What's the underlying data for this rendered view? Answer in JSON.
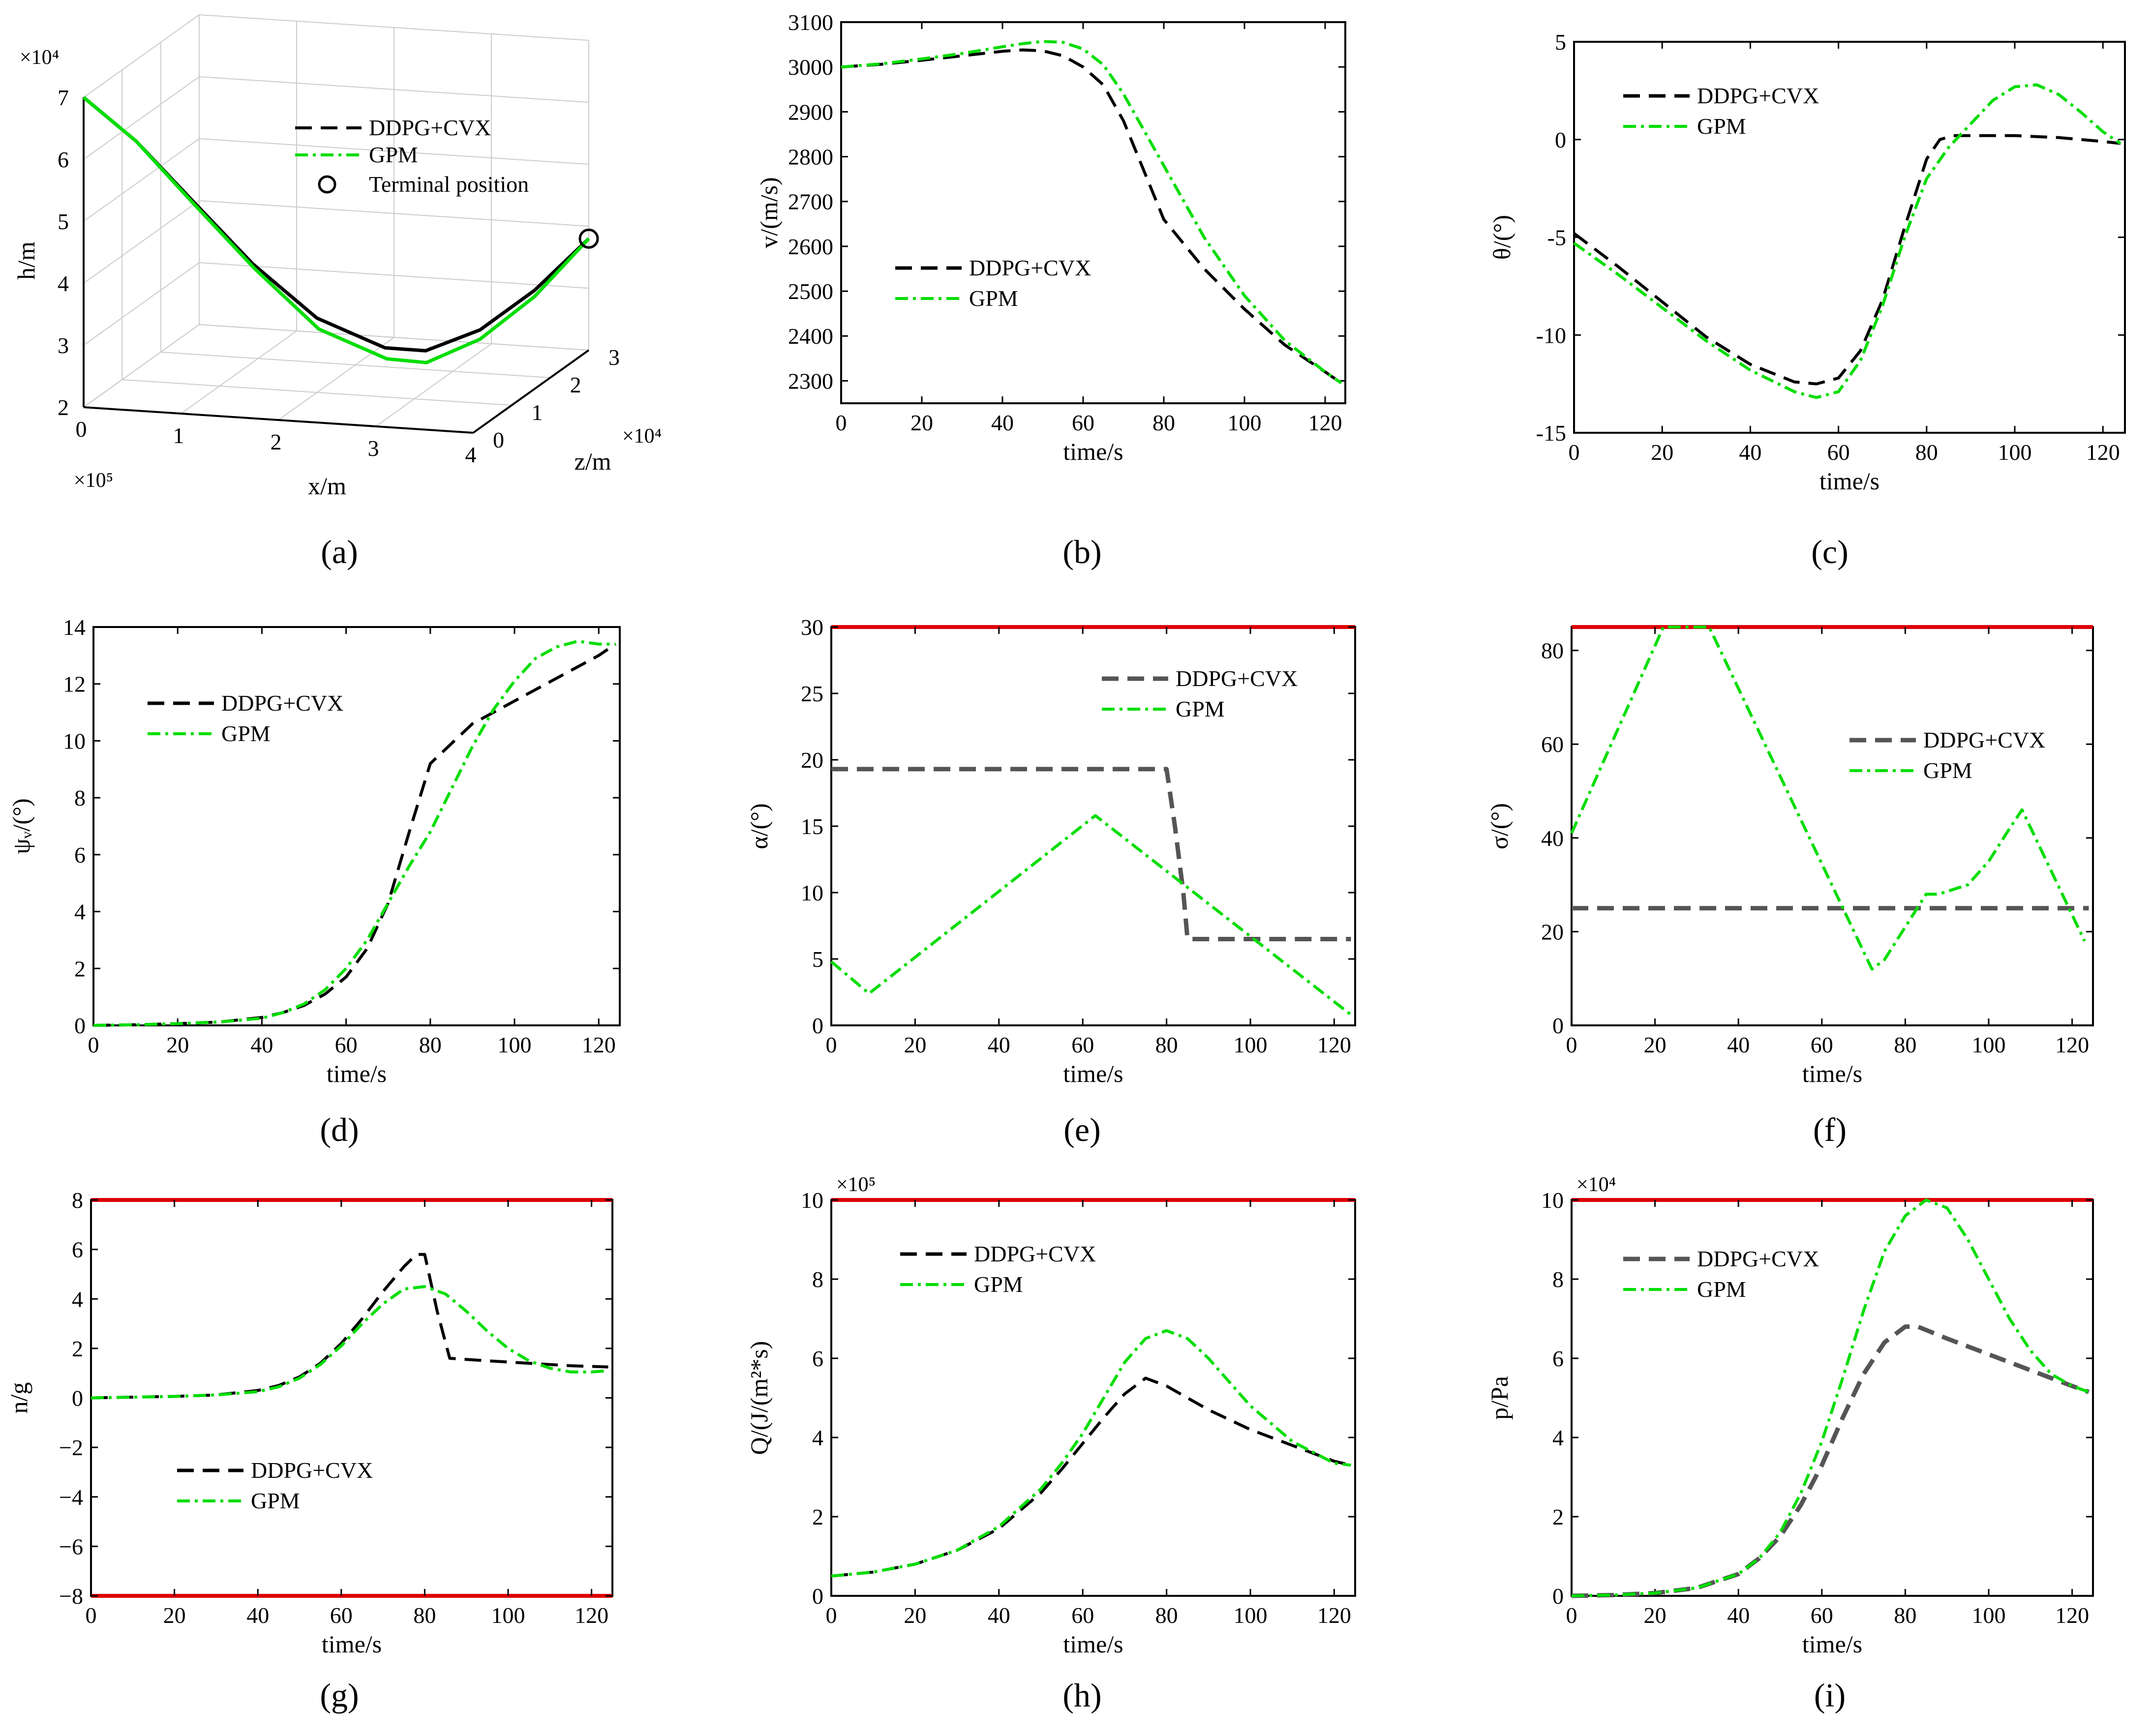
{
  "colors": {
    "ddpg": "#000000",
    "ddpg_gray": "#555555",
    "gpm": "#00dd00",
    "limit": "#dd0000",
    "grid": "#cccccc"
  },
  "chart_data": [
    {
      "id": "a",
      "type": "line3d",
      "caption": "(a)",
      "xlabel": "x/m",
      "ylabel": "h/m",
      "zlabel": "z/m",
      "x_multiplier": "×10⁵",
      "h_multiplier": "×10⁴",
      "z_multiplier": "×10⁴",
      "xticks": [
        "0",
        "1",
        "2",
        "3",
        "4"
      ],
      "hticks": [
        "2",
        "3",
        "4",
        "5",
        "6",
        "7"
      ],
      "zticks": [
        "0",
        "1",
        "2",
        "3"
      ],
      "xlim": [
        0,
        4
      ],
      "hlim": [
        2,
        7
      ],
      "zlim": [
        0,
        3
      ],
      "series": [
        {
          "name": "DDPG+CVX",
          "x": [
            0,
            0.5,
            1.0,
            1.5,
            2.0,
            2.5,
            2.8,
            3.2,
            3.6,
            4.0
          ],
          "h": [
            7.0,
            6.3,
            5.3,
            4.2,
            3.2,
            2.55,
            2.4,
            2.6,
            3.1,
            3.8
          ],
          "z": [
            0,
            0.1,
            0.3,
            0.6,
            1.0,
            1.5,
            1.8,
            2.2,
            2.6,
            3.0
          ]
        },
        {
          "name": "GPM",
          "x": [
            0,
            0.5,
            1.0,
            1.5,
            2.0,
            2.5,
            2.8,
            3.2,
            3.6,
            4.0
          ],
          "h": [
            7.0,
            6.3,
            5.25,
            4.1,
            3.0,
            2.35,
            2.2,
            2.45,
            3.0,
            3.8
          ],
          "z": [
            0,
            0.1,
            0.32,
            0.65,
            1.05,
            1.55,
            1.82,
            2.2,
            2.6,
            3.0
          ]
        }
      ],
      "legend": [
        "DDPG+CVX",
        "GPM",
        "Terminal position"
      ]
    },
    {
      "id": "b",
      "type": "line",
      "caption": "(b)",
      "xlabel": "time/s",
      "ylabel": "v/(m/s)",
      "xlim": [
        0,
        125
      ],
      "ylim": [
        2250,
        3100
      ],
      "xticks": [
        0,
        20,
        40,
        60,
        80,
        100,
        120
      ],
      "yticks": [
        2300,
        2400,
        2500,
        2600,
        2700,
        2800,
        2900,
        3000,
        3100
      ],
      "series": [
        {
          "name": "DDPG+CVX",
          "x": [
            0,
            10,
            20,
            30,
            40,
            45,
            50,
            55,
            60,
            65,
            70,
            75,
            80,
            90,
            100,
            110,
            120,
            124
          ],
          "y": [
            3000,
            3006,
            3015,
            3025,
            3035,
            3038,
            3036,
            3025,
            3000,
            2960,
            2880,
            2770,
            2660,
            2550,
            2460,
            2380,
            2320,
            2295
          ]
        },
        {
          "name": "GPM",
          "x": [
            0,
            10,
            20,
            30,
            40,
            45,
            50,
            55,
            60,
            65,
            70,
            75,
            80,
            90,
            100,
            110,
            120,
            124
          ],
          "y": [
            3000,
            3007,
            3018,
            3030,
            3045,
            3052,
            3057,
            3055,
            3040,
            3005,
            2940,
            2860,
            2780,
            2620,
            2490,
            2390,
            2320,
            2295
          ]
        }
      ],
      "legend_labels": [
        "DDPG+CVX",
        "GPM"
      ]
    },
    {
      "id": "c",
      "type": "line",
      "caption": "(c)",
      "xlabel": "time/s",
      "ylabel": "θ/(°)",
      "xlim": [
        0,
        125
      ],
      "ylim": [
        -15,
        5
      ],
      "xticks": [
        0,
        20,
        40,
        60,
        80,
        100,
        120
      ],
      "yticks": [
        -15,
        -10,
        -5,
        0,
        5
      ],
      "series": [
        {
          "name": "DDPG+CVX",
          "x": [
            0,
            10,
            20,
            30,
            40,
            50,
            55,
            60,
            65,
            70,
            75,
            80,
            83,
            86,
            90,
            100,
            110,
            120,
            124
          ],
          "y": [
            -4.8,
            -6.5,
            -8.3,
            -10.1,
            -11.5,
            -12.4,
            -12.5,
            -12.2,
            -10.8,
            -8.2,
            -4.5,
            -1.0,
            0.0,
            0.2,
            0.2,
            0.2,
            0.1,
            -0.1,
            -0.2
          ]
        },
        {
          "name": "GPM",
          "x": [
            0,
            10,
            20,
            30,
            40,
            50,
            55,
            60,
            65,
            70,
            75,
            80,
            85,
            90,
            95,
            100,
            105,
            110,
            115,
            120,
            124
          ],
          "y": [
            -5.3,
            -6.9,
            -8.6,
            -10.3,
            -11.8,
            -12.9,
            -13.2,
            -12.9,
            -11.3,
            -8.5,
            -5.0,
            -2.0,
            -0.4,
            0.8,
            2.0,
            2.7,
            2.8,
            2.3,
            1.4,
            0.4,
            -0.2
          ]
        }
      ],
      "legend_labels": [
        "DDPG+CVX",
        "GPM"
      ]
    },
    {
      "id": "d",
      "type": "line",
      "caption": "(d)",
      "xlabel": "time/s",
      "ylabel": "ψᵥ/(°)",
      "xlim": [
        0,
        125
      ],
      "ylim": [
        0,
        14
      ],
      "xticks": [
        0,
        20,
        40,
        60,
        80,
        100,
        120
      ],
      "yticks": [
        0,
        2,
        4,
        6,
        8,
        10,
        12,
        14
      ],
      "series": [
        {
          "name": "DDPG+CVX",
          "x": [
            0,
            10,
            20,
            30,
            40,
            45,
            50,
            55,
            60,
            65,
            70,
            75,
            80,
            85,
            90,
            100,
            110,
            120,
            124
          ],
          "y": [
            0,
            0.02,
            0.06,
            0.12,
            0.28,
            0.45,
            0.7,
            1.1,
            1.7,
            2.7,
            4.3,
            6.8,
            9.2,
            9.9,
            10.6,
            11.4,
            12.2,
            13.0,
            13.4
          ]
        },
        {
          "name": "GPM",
          "x": [
            0,
            10,
            20,
            30,
            40,
            45,
            50,
            55,
            60,
            65,
            70,
            75,
            80,
            85,
            90,
            95,
            100,
            105,
            110,
            115,
            120,
            124
          ],
          "y": [
            0,
            0.02,
            0.06,
            0.12,
            0.25,
            0.45,
            0.75,
            1.25,
            2.0,
            3.0,
            4.3,
            5.6,
            6.8,
            8.3,
            9.8,
            11.1,
            12.1,
            12.9,
            13.3,
            13.5,
            13.4,
            13.4
          ]
        }
      ],
      "legend_labels": [
        "DDPG+CVX",
        "GPM"
      ]
    },
    {
      "id": "e",
      "type": "line",
      "caption": "(e)",
      "xlabel": "time/s",
      "ylabel": "α/(°)",
      "xlim": [
        0,
        125
      ],
      "ylim": [
        0,
        30
      ],
      "xticks": [
        0,
        20,
        40,
        60,
        80,
        100,
        120
      ],
      "yticks": [
        0,
        5,
        10,
        15,
        20,
        25,
        30
      ],
      "limit_line": 30,
      "series": [
        {
          "name": "DDPG+CVX",
          "x": [
            0,
            80,
            82,
            84,
            85,
            124
          ],
          "y": [
            19.3,
            19.3,
            15,
            10,
            6.5,
            6.5
          ]
        },
        {
          "name": "GPM",
          "x": [
            0,
            9,
            63,
            124
          ],
          "y": [
            4.8,
            2.4,
            15.8,
            0.8
          ]
        }
      ],
      "legend_labels": [
        "DDPG+CVX",
        "GPM"
      ]
    },
    {
      "id": "f",
      "type": "line",
      "caption": "(f)",
      "xlabel": "time/s",
      "ylabel": "σ/(°)",
      "xlim": [
        0,
        125
      ],
      "ylim": [
        0,
        85
      ],
      "xticks": [
        0,
        20,
        40,
        60,
        80,
        100,
        120
      ],
      "yticks": [
        0,
        20,
        40,
        60,
        80
      ],
      "limit_line": 85,
      "series": [
        {
          "name": "DDPG+CVX",
          "x": [
            0,
            124
          ],
          "y": [
            25,
            25
          ]
        },
        {
          "name": "GPM",
          "x": [
            0,
            22,
            33,
            72,
            75,
            85,
            88,
            95,
            100,
            105,
            108,
            123
          ],
          "y": [
            41,
            85,
            85,
            12,
            14,
            28,
            28,
            30,
            35,
            42,
            46,
            18
          ]
        }
      ],
      "legend_labels": [
        "DDPG+CVX",
        "GPM"
      ]
    },
    {
      "id": "g",
      "type": "line",
      "caption": "(g)",
      "xlabel": "time/s",
      "ylabel": "n/g",
      "xlim": [
        0,
        125
      ],
      "ylim": [
        -8,
        8
      ],
      "xticks": [
        0,
        20,
        40,
        60,
        80,
        100,
        120
      ],
      "yticks": [
        -8,
        -6,
        -4,
        -2,
        0,
        2,
        4,
        6,
        8
      ],
      "ytick_labels": [
        "−8",
        "−6",
        "−4",
        "−2",
        "0",
        "2",
        "4",
        "6",
        "8"
      ],
      "limit_lines": [
        8,
        -8
      ],
      "series": [
        {
          "name": "DDPG+CVX",
          "x": [
            0,
            10,
            20,
            30,
            40,
            45,
            50,
            55,
            60,
            65,
            70,
            75,
            78,
            80,
            83,
            86,
            95,
            105,
            115,
            124
          ],
          "y": [
            0,
            0.03,
            0.06,
            0.12,
            0.3,
            0.5,
            0.85,
            1.4,
            2.2,
            3.2,
            4.3,
            5.3,
            5.8,
            5.8,
            3.5,
            1.6,
            1.5,
            1.4,
            1.3,
            1.25
          ]
        },
        {
          "name": "GPM",
          "x": [
            0,
            10,
            20,
            30,
            40,
            45,
            50,
            55,
            60,
            65,
            70,
            75,
            80,
            85,
            90,
            95,
            100,
            105,
            110,
            115,
            120,
            124
          ],
          "y": [
            0,
            0.03,
            0.06,
            0.12,
            0.25,
            0.45,
            0.8,
            1.35,
            2.1,
            3.0,
            3.8,
            4.4,
            4.5,
            4.2,
            3.5,
            2.7,
            2.0,
            1.5,
            1.2,
            1.05,
            1.05,
            1.1
          ]
        }
      ],
      "legend_labels": [
        "DDPG+CVX",
        "GPM"
      ]
    },
    {
      "id": "h",
      "type": "line",
      "caption": "(h)",
      "xlabel": "time/s",
      "ylabel": "Q/(J/(m²*s)",
      "y_multiplier": "×10⁵",
      "xlim": [
        0,
        125
      ],
      "ylim": [
        0,
        10
      ],
      "xticks": [
        0,
        20,
        40,
        60,
        80,
        100,
        120
      ],
      "yticks": [
        0,
        2,
        4,
        6,
        8,
        10
      ],
      "limit_line": 10,
      "series": [
        {
          "name": "DDPG+CVX",
          "x": [
            0,
            10,
            20,
            30,
            40,
            50,
            55,
            60,
            65,
            70,
            75,
            80,
            90,
            100,
            110,
            120,
            124
          ],
          "y": [
            0.5,
            0.6,
            0.8,
            1.15,
            1.7,
            2.6,
            3.2,
            3.85,
            4.5,
            5.1,
            5.5,
            5.3,
            4.7,
            4.2,
            3.8,
            3.4,
            3.3
          ]
        },
        {
          "name": "GPM",
          "x": [
            0,
            10,
            20,
            30,
            40,
            50,
            55,
            60,
            65,
            70,
            75,
            80,
            85,
            90,
            100,
            110,
            120,
            124
          ],
          "y": [
            0.5,
            0.6,
            0.8,
            1.15,
            1.75,
            2.7,
            3.35,
            4.1,
            5.0,
            5.9,
            6.5,
            6.7,
            6.5,
            6.0,
            4.8,
            3.9,
            3.35,
            3.3
          ]
        }
      ],
      "legend_labels": [
        "DDPG+CVX",
        "GPM"
      ]
    },
    {
      "id": "i",
      "type": "line",
      "caption": "(i)",
      "xlabel": "time/s",
      "ylabel": "p/Pa",
      "y_multiplier": "×10⁴",
      "xlim": [
        0,
        125
      ],
      "ylim": [
        0,
        10
      ],
      "xticks": [
        0,
        20,
        40,
        60,
        80,
        100,
        120
      ],
      "yticks": [
        0,
        2,
        4,
        6,
        8,
        10
      ],
      "limit_line": 10,
      "series": [
        {
          "name": "DDPG+CVX",
          "x": [
            0,
            10,
            20,
            30,
            40,
            45,
            50,
            55,
            60,
            65,
            70,
            75,
            80,
            83,
            90,
            100,
            110,
            120,
            124
          ],
          "y": [
            0,
            0.02,
            0.07,
            0.2,
            0.55,
            0.95,
            1.5,
            2.3,
            3.3,
            4.5,
            5.6,
            6.4,
            6.8,
            6.8,
            6.5,
            6.1,
            5.7,
            5.3,
            5.15
          ]
        },
        {
          "name": "GPM",
          "x": [
            0,
            10,
            20,
            30,
            40,
            45,
            50,
            55,
            60,
            65,
            70,
            75,
            80,
            85,
            90,
            95,
            100,
            105,
            110,
            115,
            120,
            124
          ],
          "y": [
            0,
            0.02,
            0.07,
            0.2,
            0.55,
            0.95,
            1.6,
            2.6,
            3.9,
            5.5,
            7.2,
            8.7,
            9.6,
            10.0,
            9.8,
            9.0,
            8.0,
            7.0,
            6.2,
            5.6,
            5.3,
            5.15
          ]
        }
      ],
      "legend_labels": [
        "DDPG+CVX",
        "GPM"
      ]
    }
  ]
}
